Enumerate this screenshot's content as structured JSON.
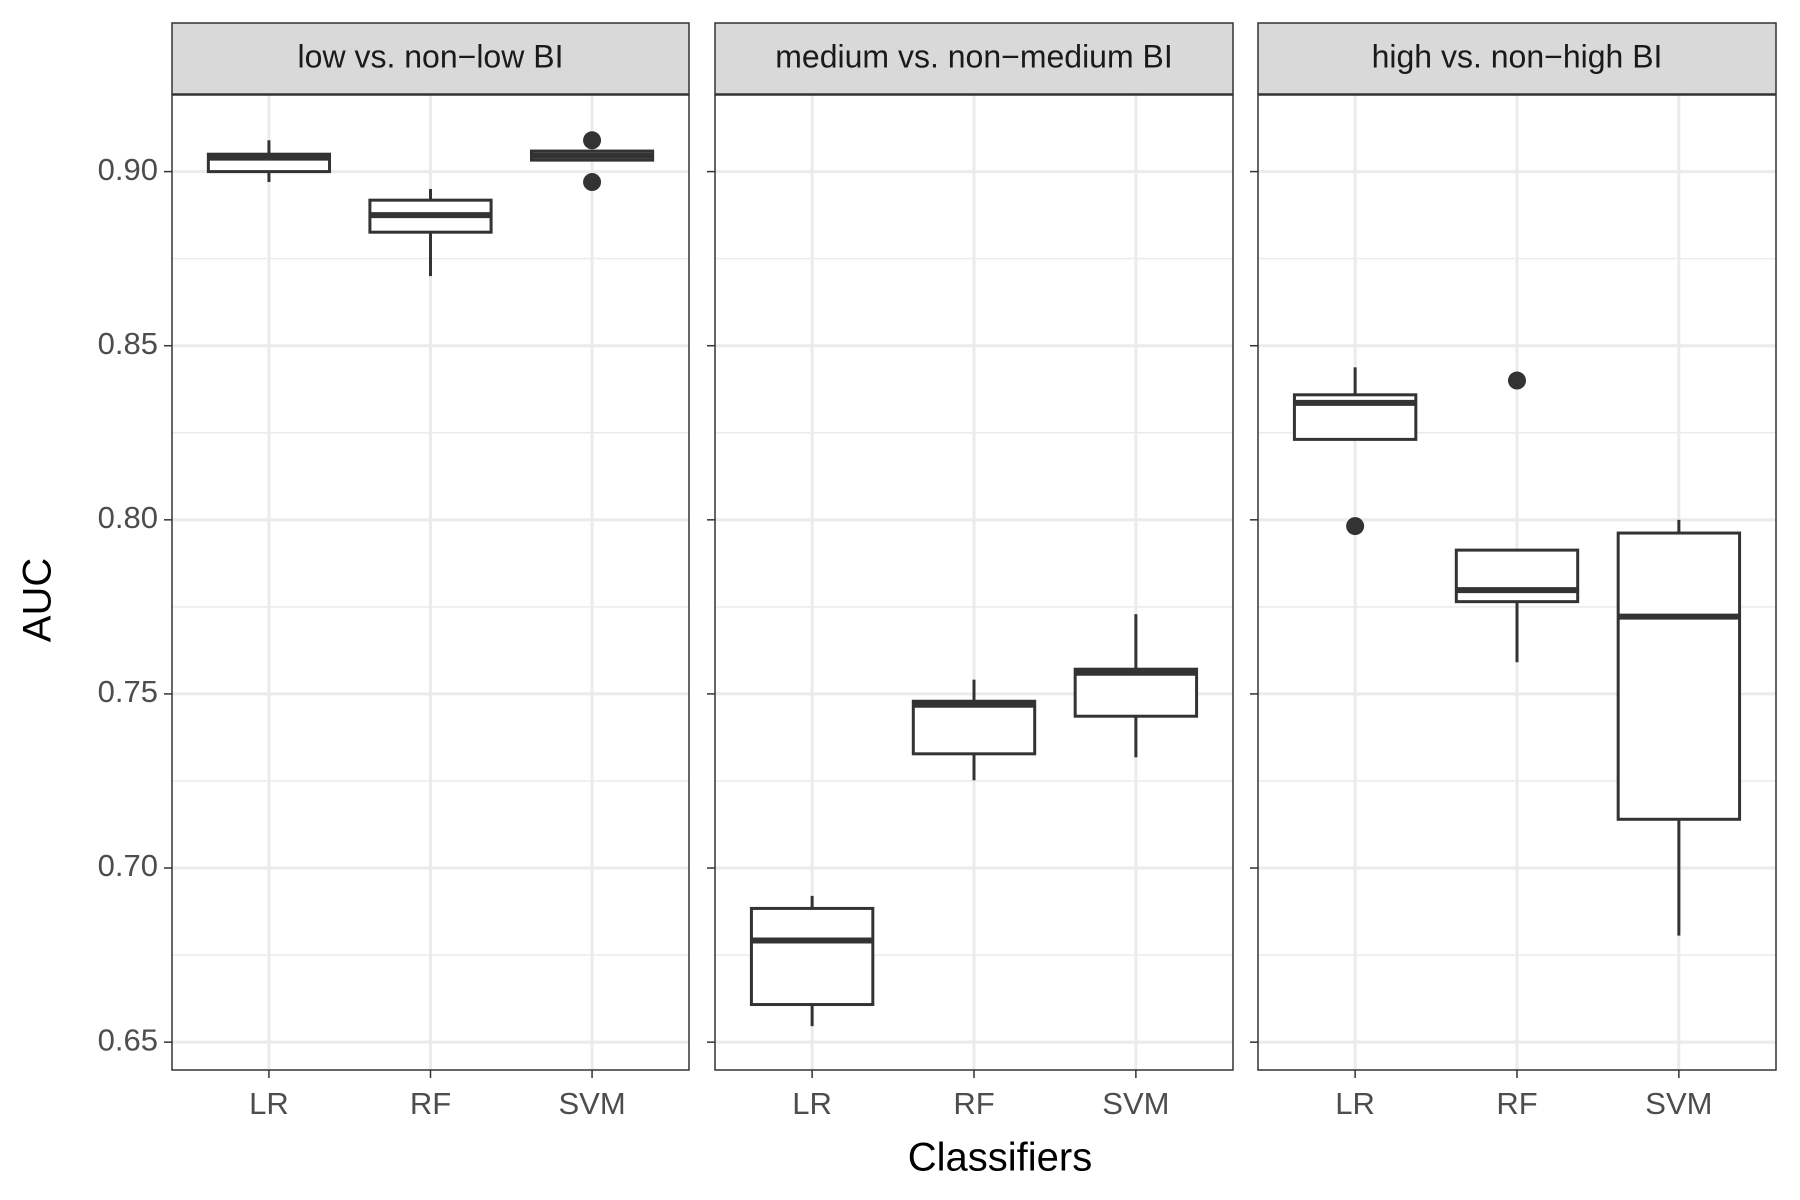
{
  "chart_data": {
    "type": "boxplot",
    "xlabel": "Classifiers",
    "ylabel": "AUC",
    "ylim": [
      0.642,
      0.922
    ],
    "yticks": [
      0.65,
      {
        "value": 0.7,
        "label": "0.70"
      },
      0.75,
      {
        "value": 0.8,
        "label": "0.80"
      },
      0.85,
      {
        "value": 0.9,
        "label": "0.90"
      }
    ],
    "minor_yticks": [
      0.675,
      0.725,
      0.775,
      0.825,
      0.875
    ],
    "grid": true,
    "color": "#333333",
    "facets": [
      {
        "title": "low vs. non−low BI",
        "categories": [
          "LR",
          "RF",
          "SVM"
        ],
        "boxes": [
          {
            "min": 0.897,
            "q1": 0.9,
            "median": 0.904,
            "q3": 0.905,
            "max": 0.909,
            "outliers": []
          },
          {
            "min": 0.87,
            "q1": 0.8826,
            "median": 0.8875,
            "q3": 0.8918,
            "max": 0.895,
            "outliers": []
          },
          {
            "min": 0.9033,
            "q1": 0.9033,
            "median": 0.9046,
            "q3": 0.9059,
            "max": 0.9059,
            "outliers": [
              0.909,
              0.897
            ]
          }
        ]
      },
      {
        "title": "medium vs. non−medium BI",
        "categories": [
          "LR",
          "RF",
          "SVM"
        ],
        "boxes": [
          {
            "min": 0.6546,
            "q1": 0.6608,
            "median": 0.6792,
            "q3": 0.6884,
            "max": 0.692,
            "outliers": []
          },
          {
            "min": 0.7252,
            "q1": 0.7328,
            "median": 0.7469,
            "q3": 0.7479,
            "max": 0.7541,
            "outliers": []
          },
          {
            "min": 0.7318,
            "q1": 0.7436,
            "median": 0.7561,
            "q3": 0.7571,
            "max": 0.7729,
            "outliers": []
          }
        ]
      },
      {
        "title": "high vs. non−high BI",
        "categories": [
          "LR",
          "RF",
          "SVM"
        ],
        "boxes": [
          {
            "min": 0.8231,
            "q1": 0.8231,
            "median": 0.8336,
            "q3": 0.8359,
            "max": 0.8438,
            "outliers": [
              0.7982
            ]
          },
          {
            "min": 0.7591,
            "q1": 0.7765,
            "median": 0.7798,
            "q3": 0.7913,
            "max": 0.7913,
            "outliers": [
              0.84
            ]
          },
          {
            "min": 0.6806,
            "q1": 0.714,
            "median": 0.7722,
            "q3": 0.7962,
            "max": 0.8,
            "outliers": []
          }
        ]
      }
    ]
  }
}
